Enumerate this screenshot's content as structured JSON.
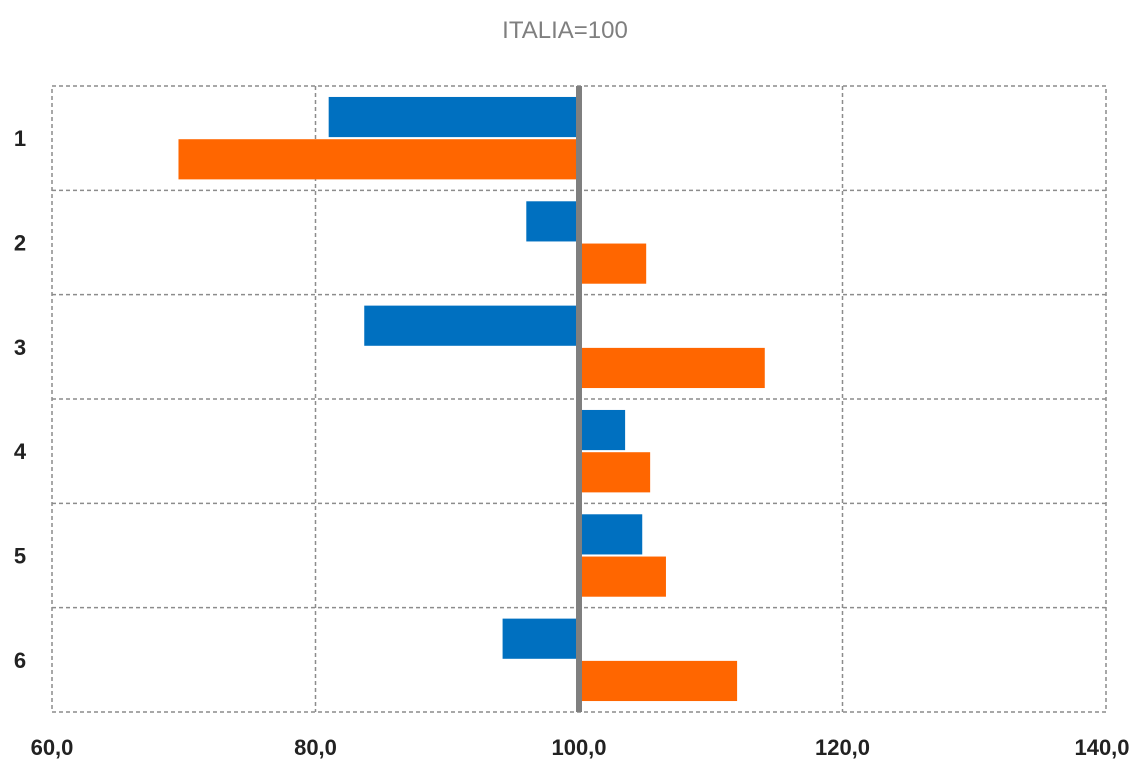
{
  "chart_data": {
    "type": "bar",
    "orientation": "horizontal",
    "title": "ITALIA=100",
    "categories": [
      "1",
      "2",
      "3",
      "4",
      "5",
      "6"
    ],
    "series": [
      {
        "values": [
          81.0,
          96.0,
          83.7,
          103.5,
          104.8,
          94.2
        ]
      },
      {
        "values": [
          69.6,
          105.1,
          114.1,
          105.4,
          106.6,
          112.0
        ]
      }
    ],
    "xlim": [
      60,
      140
    ],
    "xticks": [
      60,
      80,
      100,
      120,
      140
    ],
    "xtick_labels": [
      "60,0",
      "80,0",
      "100,0",
      "120,0",
      "140,0"
    ],
    "baseline": 100,
    "colors": [
      "#0070c0",
      "#ff6600"
    ],
    "baseline_color": "#7f7f7f",
    "grid": true
  }
}
